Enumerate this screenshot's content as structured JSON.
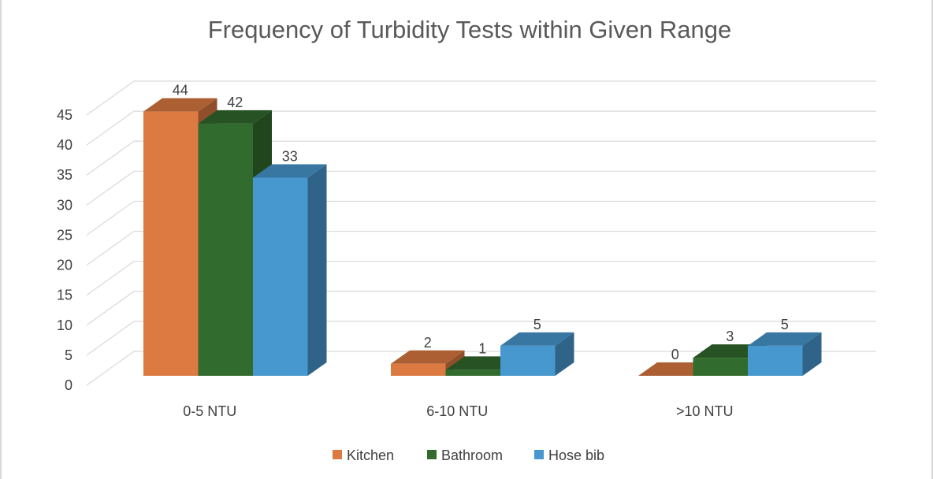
{
  "chart_data": {
    "type": "bar",
    "title": "Frequency of Turbidity Tests within Given Range",
    "categories": [
      "0-5 NTU",
      "6-10 NTU",
      ">10 NTU"
    ],
    "series": [
      {
        "name": "Kitchen",
        "values": [
          44,
          2,
          0
        ],
        "color": "#dd7a42"
      },
      {
        "name": "Bathroom",
        "values": [
          42,
          1,
          3
        ],
        "color": "#326b2e"
      },
      {
        "name": "Hose bib",
        "values": [
          33,
          5,
          5
        ],
        "color": "#4898d0"
      }
    ],
    "ylim": [
      0,
      45
    ],
    "yticks": [
      "0",
      "5",
      "10",
      "15",
      "20",
      "25",
      "30",
      "35",
      "40",
      "45"
    ],
    "grid": true,
    "legend": "bottom",
    "style": "3d-clustered-column"
  }
}
